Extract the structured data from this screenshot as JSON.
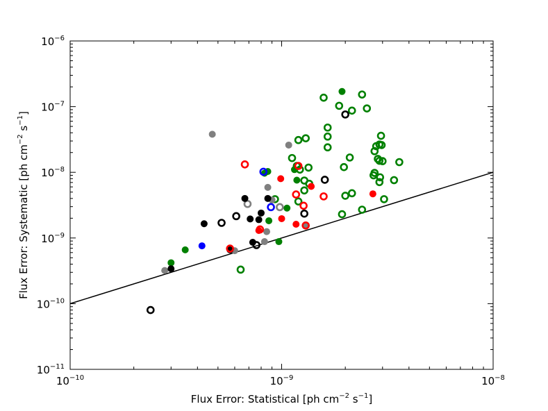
{
  "chart_data": {
    "type": "scatter",
    "title": "",
    "xscale": "log",
    "yscale": "log",
    "xlim": [
      1e-10,
      1e-08
    ],
    "ylim": [
      1e-11,
      1e-06
    ],
    "xlabel": {
      "prefix": "Flux Error: Statistical  [ph cm",
      "sup1": "−2",
      "mid": " s",
      "sup2": "−1",
      "suffix": "]"
    },
    "ylabel": {
      "prefix": "Flux Error: Systematic  [ph cm",
      "sup1": "−2",
      "mid": " s",
      "sup2": "−1",
      "suffix": "]"
    },
    "xticks": [
      {
        "value": 1e-10,
        "base": "10",
        "exp": "−10"
      },
      {
        "value": 1e-09,
        "base": "10",
        "exp": "−9"
      },
      {
        "value": 1e-08,
        "base": "10",
        "exp": "−8"
      }
    ],
    "yticks": [
      {
        "value": 1e-11,
        "base": "10",
        "exp": "−11"
      },
      {
        "value": 1e-10,
        "base": "10",
        "exp": "−10"
      },
      {
        "value": 1e-09,
        "base": "10",
        "exp": "−9"
      },
      {
        "value": 1e-08,
        "base": "10",
        "exp": "−8"
      },
      {
        "value": 1e-07,
        "base": "10",
        "exp": "−7"
      },
      {
        "value": 1e-06,
        "base": "10",
        "exp": "−6"
      }
    ],
    "grid": false,
    "reference_line": {
      "x": [
        1e-10,
        1e-08
      ],
      "y": [
        1e-10,
        1e-08
      ],
      "color": "#000000"
    },
    "series": [
      {
        "color": "#008000",
        "filled": true,
        "points": [
          [
            1.93e-09,
            1.7e-07
          ],
          [
            8.6e-10,
            1.03e-08
          ],
          [
            8.3e-10,
            9.7e-09
          ],
          [
            1.18e-09,
            7.6e-09
          ],
          [
            8.7e-10,
            1.83e-09
          ],
          [
            9.7e-10,
            8.8e-10
          ],
          [
            1.06e-09,
            2.85e-09
          ],
          [
            3.5e-10,
            6.6e-10
          ],
          [
            3e-10,
            4.2e-10
          ],
          [
            1.15e-09,
            1.1e-08
          ]
        ]
      },
      {
        "color": "#008000",
        "filled": false,
        "points": [
          [
            1.58e-09,
            1.37e-07
          ],
          [
            2.4e-09,
            1.53e-07
          ],
          [
            1.87e-09,
            1.03e-07
          ],
          [
            2.15e-09,
            8.7e-08
          ],
          [
            2.53e-09,
            9.4e-08
          ],
          [
            1.65e-09,
            4.8e-08
          ],
          [
            1.65e-09,
            3.5e-08
          ],
          [
            2.95e-09,
            3.6e-08
          ],
          [
            1.3e-09,
            3.3e-08
          ],
          [
            1.2e-09,
            3.1e-08
          ],
          [
            2.9e-09,
            2.65e-08
          ],
          [
            2.97e-09,
            2.6e-08
          ],
          [
            2.8e-09,
            2.5e-08
          ],
          [
            1.65e-09,
            2.4e-08
          ],
          [
            2.75e-09,
            2.1e-08
          ],
          [
            1.12e-09,
            1.65e-08
          ],
          [
            2.1e-09,
            1.68e-08
          ],
          [
            2.85e-09,
            1.6e-08
          ],
          [
            2.9e-09,
            1.5e-08
          ],
          [
            3e-09,
            1.48e-08
          ],
          [
            3.6e-09,
            1.43e-08
          ],
          [
            1.18e-09,
            1.25e-08
          ],
          [
            1.34e-09,
            1.18e-08
          ],
          [
            1.97e-09,
            1.2e-08
          ],
          [
            1.22e-09,
            1.1e-08
          ],
          [
            2.75e-09,
            9.8e-09
          ],
          [
            2.72e-09,
            9e-09
          ],
          [
            2.92e-09,
            8.4e-09
          ],
          [
            1.28e-09,
            7.5e-09
          ],
          [
            1.35e-09,
            6.7e-09
          ],
          [
            2.9e-09,
            7.1e-09
          ],
          [
            3.4e-09,
            7.6e-09
          ],
          [
            1.28e-09,
            5.3e-09
          ],
          [
            2.15e-09,
            4.8e-09
          ],
          [
            2e-09,
            4.4e-09
          ],
          [
            1.2e-09,
            3.6e-09
          ],
          [
            3.05e-09,
            3.9e-09
          ],
          [
            2.4e-09,
            2.7e-09
          ],
          [
            1.93e-09,
            2.3e-09
          ],
          [
            6.4e-10,
            3.3e-10
          ],
          [
            9.3e-10,
            3.9e-09
          ]
        ]
      },
      {
        "color": "#808080",
        "filled": true,
        "points": [
          [
            4.7e-10,
            3.8e-08
          ],
          [
            1.08e-09,
            2.6e-08
          ],
          [
            8.6e-10,
            5.9e-09
          ],
          [
            1.3e-09,
            1.55e-09
          ],
          [
            8.5e-10,
            1.25e-09
          ],
          [
            8.3e-10,
            8.8e-10
          ],
          [
            6e-10,
            6.4e-10
          ],
          [
            2.8e-10,
            3.2e-10
          ],
          [
            9e-10,
            3.8e-09
          ]
        ]
      },
      {
        "color": "#808080",
        "filled": false,
        "points": [
          [
            6.9e-10,
            3.3e-09
          ],
          [
            9.8e-10,
            2.95e-09
          ]
        ]
      },
      {
        "color": "#000000",
        "filled": true,
        "points": [
          [
            6.7e-10,
            4e-09
          ],
          [
            8.6e-10,
            4e-09
          ],
          [
            8e-10,
            2.4e-09
          ],
          [
            7.1e-10,
            1.95e-09
          ],
          [
            7.8e-10,
            1.9e-09
          ],
          [
            4.3e-10,
            1.65e-09
          ],
          [
            7.3e-10,
            8.6e-10
          ],
          [
            5.7e-10,
            6.6e-10
          ],
          [
            3e-10,
            3.4e-10
          ]
        ]
      },
      {
        "color": "#000000",
        "filled": false,
        "points": [
          [
            2e-09,
            7.6e-08
          ],
          [
            1.6e-09,
            7.7e-09
          ],
          [
            6.1e-10,
            2.15e-09
          ],
          [
            5.2e-10,
            1.7e-09
          ],
          [
            1.28e-09,
            2.35e-09
          ],
          [
            7.6e-10,
            7.8e-10
          ],
          [
            2.4e-10,
            8e-11
          ]
        ]
      },
      {
        "color": "#ff0000",
        "filled": true,
        "points": [
          [
            9.9e-10,
            8e-09
          ],
          [
            1.38e-09,
            6.1e-09
          ],
          [
            1e-09,
            1.97e-09
          ],
          [
            1.17e-09,
            1.62e-09
          ],
          [
            7.8e-10,
            1.3e-09
          ],
          [
            2.7e-09,
            4.7e-09
          ]
        ]
      },
      {
        "color": "#ff0000",
        "filled": false,
        "points": [
          [
            6.7e-10,
            1.32e-08
          ],
          [
            1.2e-09,
            1.25e-08
          ],
          [
            1.17e-09,
            4.6e-09
          ],
          [
            1.58e-09,
            4.3e-09
          ],
          [
            1.27e-09,
            3.1e-09
          ],
          [
            1.3e-09,
            1.55e-09
          ],
          [
            5.7e-10,
            6.9e-10
          ],
          [
            7.9e-10,
            1.35e-09
          ]
        ]
      },
      {
        "color": "#0000ff",
        "filled": true,
        "points": [
          [
            4.2e-10,
            7.6e-10
          ]
        ]
      },
      {
        "color": "#0000ff",
        "filled": false,
        "points": [
          [
            8.2e-10,
            1.02e-08
          ],
          [
            8.9e-10,
            2.95e-09
          ]
        ]
      }
    ]
  }
}
